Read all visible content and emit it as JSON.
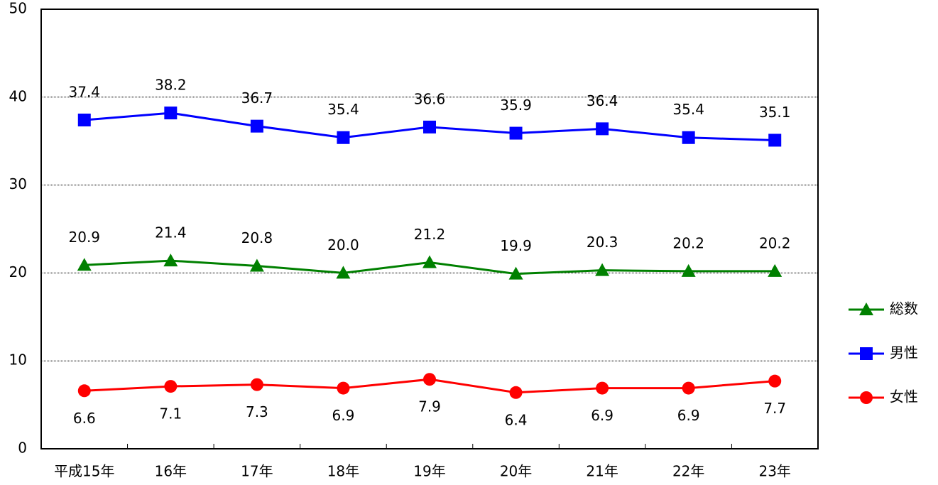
{
  "chart_data": {
    "type": "line",
    "categories": [
      "平成15年",
      "16年",
      "17年",
      "18年",
      "19年",
      "20年",
      "21年",
      "22年",
      "23年"
    ],
    "ylim": [
      0,
      50
    ],
    "yticks": [
      0,
      10,
      20,
      30,
      40,
      50
    ],
    "grid": true,
    "legend": "right",
    "series": [
      {
        "name": "総数",
        "color": "#008000",
        "marker": "triangle",
        "label_position": "above",
        "values": [
          20.9,
          21.4,
          20.8,
          20.0,
          21.2,
          19.9,
          20.3,
          20.2,
          20.2
        ],
        "value_labels": [
          "20.9",
          "21.4",
          "20.8",
          "20.0",
          "21.2",
          "19.9",
          "20.3",
          "20.2",
          "20.2"
        ]
      },
      {
        "name": "男性",
        "color": "#0000ff",
        "marker": "square",
        "label_position": "above",
        "values": [
          37.4,
          38.2,
          36.7,
          35.4,
          36.6,
          35.9,
          36.4,
          35.4,
          35.1
        ],
        "value_labels": [
          "37.4",
          "38.2",
          "36.7",
          "35.4",
          "36.6",
          "35.9",
          "36.4",
          "35.4",
          "35.1"
        ]
      },
      {
        "name": "女性",
        "color": "#ff0000",
        "marker": "circle",
        "label_position": "below",
        "values": [
          6.6,
          7.1,
          7.3,
          6.9,
          7.9,
          6.4,
          6.9,
          6.9,
          7.7
        ],
        "value_labels": [
          "6.6",
          "7.1",
          "7.3",
          "6.9",
          "7.9",
          "6.4",
          "6.9",
          "6.9",
          "7.7"
        ]
      }
    ]
  }
}
